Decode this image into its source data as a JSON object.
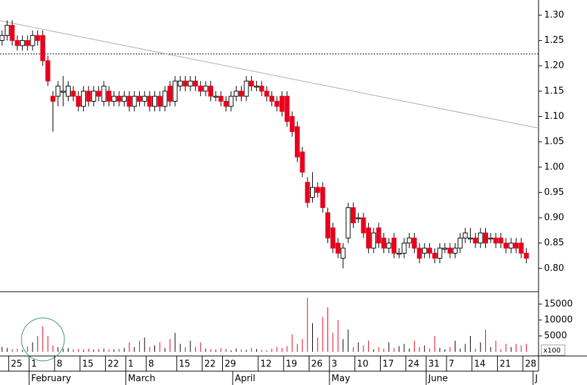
{
  "chart_data": {
    "type": "candlestick",
    "x": [
      0,
      1,
      2,
      3,
      4,
      5,
      6,
      7,
      8,
      9,
      10,
      11,
      12,
      13,
      14,
      15,
      16,
      17,
      18,
      19,
      20,
      21,
      22,
      23,
      24,
      25,
      26,
      27,
      28,
      29,
      30,
      31,
      32,
      33,
      34,
      35,
      36,
      37,
      38,
      39,
      40,
      41,
      42,
      43,
      44,
      45,
      46,
      47,
      48,
      49,
      50,
      51,
      52,
      53,
      54,
      55,
      56,
      57,
      58,
      59,
      60,
      61,
      62,
      63,
      64,
      65,
      66,
      67,
      68,
      69,
      70,
      71,
      72,
      73,
      74,
      75,
      76,
      77,
      78,
      79,
      80,
      81,
      82,
      83,
      84,
      85,
      86,
      87,
      88,
      89,
      90,
      91,
      92,
      93,
      94,
      95,
      96,
      97,
      98,
      99,
      100,
      101,
      102,
      103
    ],
    "open": [
      1.25,
      1.26,
      1.28,
      1.25,
      1.24,
      1.25,
      1.24,
      1.26,
      1.26,
      1.21,
      1.14,
      1.14,
      1.15,
      1.14,
      1.15,
      1.14,
      1.12,
      1.15,
      1.13,
      1.15,
      1.13,
      1.15,
      1.13,
      1.14,
      1.13,
      1.14,
      1.12,
      1.14,
      1.13,
      1.14,
      1.12,
      1.14,
      1.12,
      1.16,
      1.13,
      1.16,
      1.17,
      1.16,
      1.17,
      1.16,
      1.15,
      1.16,
      1.14,
      1.14,
      1.13,
      1.12,
      1.14,
      1.15,
      1.14,
      1.17,
      1.16,
      1.16,
      1.15,
      1.14,
      1.13,
      1.14,
      1.14,
      1.1,
      1.08,
      1.03,
      0.97,
      0.94,
      0.96,
      0.96,
      0.91,
      0.88,
      0.85,
      0.82,
      0.86,
      0.92,
      0.9,
      0.9,
      0.88,
      0.84,
      0.88,
      0.86,
      0.84,
      0.86,
      0.83,
      0.83,
      0.85,
      0.86,
      0.84,
      0.83,
      0.84,
      0.83,
      0.82,
      0.84,
      0.84,
      0.83,
      0.84,
      0.86,
      0.86,
      0.86,
      0.85,
      0.87,
      0.86,
      0.86,
      0.86,
      0.85,
      0.84,
      0.85,
      0.85,
      0.83
    ],
    "high": [
      1.27,
      1.29,
      1.29,
      1.26,
      1.26,
      1.26,
      1.27,
      1.27,
      1.27,
      1.22,
      1.15,
      1.17,
      1.18,
      1.17,
      1.16,
      1.15,
      1.16,
      1.16,
      1.16,
      1.16,
      1.17,
      1.16,
      1.15,
      1.15,
      1.15,
      1.15,
      1.15,
      1.15,
      1.15,
      1.15,
      1.15,
      1.15,
      1.16,
      1.17,
      1.18,
      1.18,
      1.18,
      1.18,
      1.18,
      1.17,
      1.17,
      1.17,
      1.15,
      1.15,
      1.14,
      1.15,
      1.16,
      1.16,
      1.18,
      1.18,
      1.17,
      1.17,
      1.16,
      1.15,
      1.14,
      1.15,
      1.15,
      1.11,
      1.09,
      1.04,
      0.98,
      0.99,
      0.97,
      0.97,
      0.92,
      0.89,
      0.86,
      0.85,
      0.93,
      0.93,
      0.91,
      0.91,
      0.89,
      0.88,
      0.89,
      0.87,
      0.86,
      0.87,
      0.84,
      0.86,
      0.87,
      0.87,
      0.85,
      0.85,
      0.85,
      0.84,
      0.85,
      0.85,
      0.85,
      0.85,
      0.87,
      0.88,
      0.88,
      0.87,
      0.88,
      0.88,
      0.87,
      0.87,
      0.87,
      0.86,
      0.86,
      0.86,
      0.86,
      0.84
    ],
    "low": [
      1.24,
      1.25,
      1.24,
      1.23,
      1.23,
      1.23,
      1.23,
      1.24,
      1.2,
      1.16,
      1.07,
      1.12,
      1.12,
      1.13,
      1.13,
      1.11,
      1.11,
      1.12,
      1.12,
      1.13,
      1.12,
      1.12,
      1.12,
      1.12,
      1.12,
      1.11,
      1.11,
      1.12,
      1.12,
      1.11,
      1.11,
      1.11,
      1.11,
      1.12,
      1.12,
      1.15,
      1.15,
      1.15,
      1.15,
      1.14,
      1.14,
      1.13,
      1.13,
      1.12,
      1.11,
      1.11,
      1.13,
      1.13,
      1.13,
      1.15,
      1.15,
      1.14,
      1.13,
      1.12,
      1.11,
      1.1,
      1.08,
      1.06,
      1.01,
      0.98,
      0.92,
      0.93,
      0.94,
      0.91,
      0.85,
      0.83,
      0.82,
      0.8,
      0.85,
      0.88,
      0.89,
      0.86,
      0.83,
      0.83,
      0.84,
      0.83,
      0.83,
      0.82,
      0.82,
      0.82,
      0.84,
      0.83,
      0.81,
      0.82,
      0.82,
      0.81,
      0.81,
      0.83,
      0.82,
      0.82,
      0.83,
      0.85,
      0.85,
      0.84,
      0.84,
      0.84,
      0.85,
      0.84,
      0.84,
      0.83,
      0.83,
      0.83,
      0.82,
      0.81
    ],
    "close": [
      1.26,
      1.28,
      1.25,
      1.24,
      1.25,
      1.24,
      1.26,
      1.25,
      1.21,
      1.17,
      1.13,
      1.16,
      1.15,
      1.16,
      1.14,
      1.12,
      1.15,
      1.13,
      1.15,
      1.14,
      1.16,
      1.13,
      1.14,
      1.13,
      1.14,
      1.12,
      1.14,
      1.13,
      1.14,
      1.12,
      1.14,
      1.12,
      1.15,
      1.13,
      1.17,
      1.17,
      1.16,
      1.17,
      1.16,
      1.15,
      1.16,
      1.14,
      1.14,
      1.13,
      1.12,
      1.14,
      1.15,
      1.14,
      1.17,
      1.16,
      1.16,
      1.15,
      1.14,
      1.13,
      1.12,
      1.11,
      1.09,
      1.07,
      1.02,
      0.99,
      0.93,
      0.96,
      0.95,
      0.92,
      0.86,
      0.84,
      0.83,
      0.84,
      0.92,
      0.89,
      0.9,
      0.87,
      0.84,
      0.87,
      0.85,
      0.84,
      0.85,
      0.83,
      0.83,
      0.85,
      0.86,
      0.84,
      0.82,
      0.84,
      0.83,
      0.82,
      0.84,
      0.84,
      0.83,
      0.84,
      0.86,
      0.87,
      0.86,
      0.85,
      0.87,
      0.85,
      0.86,
      0.85,
      0.85,
      0.84,
      0.85,
      0.84,
      0.83,
      0.82
    ],
    "volume": [
      1500,
      1200,
      800,
      1000,
      600,
      1800,
      3000,
      5000,
      8000,
      5000,
      2000,
      1500,
      1000,
      1200,
      800,
      900,
      600,
      1000,
      700,
      900,
      1000,
      700,
      800,
      900,
      1200,
      3000,
      1500,
      3500,
      4500,
      1500,
      2000,
      3000,
      1200,
      4000,
      6000,
      2500,
      1500,
      3500,
      1500,
      3000,
      1000,
      800,
      700,
      1200,
      900,
      500,
      1000,
      700,
      600,
      1200,
      900,
      600,
      500,
      1000,
      1500,
      1200,
      1800,
      5500,
      2500,
      4000,
      17000,
      9000,
      4500,
      11000,
      14000,
      6000,
      10000,
      4000,
      7000,
      1500,
      3000,
      2000,
      3500,
      800,
      1500,
      1000,
      3000,
      1200,
      1800,
      2500,
      1000,
      3500,
      1500,
      2000,
      1000,
      5000,
      1200,
      800,
      1500,
      3500,
      1000,
      2500,
      5000,
      1000,
      3000,
      7000,
      1500,
      3500,
      800,
      2500,
      1500,
      2500,
      2000,
      2500
    ],
    "up_color": "#ffffff",
    "down_color": "#e8001c",
    "xlim": [
      -0.4,
      105.4
    ],
    "xticks": [
      {
        "value": 2,
        "label": "25"
      },
      {
        "value": 6,
        "label": "1"
      },
      {
        "value": 11,
        "label": "8"
      },
      {
        "value": 16,
        "label": "15"
      },
      {
        "value": 21,
        "label": "22"
      },
      {
        "value": 25,
        "label": "1"
      },
      {
        "value": 29,
        "label": "8"
      },
      {
        "value": 35,
        "label": "15"
      },
      {
        "value": 40,
        "label": "22"
      },
      {
        "value": 44,
        "label": "29"
      },
      {
        "value": 51,
        "label": "12"
      },
      {
        "value": 56,
        "label": "19"
      },
      {
        "value": 61,
        "label": "26"
      },
      {
        "value": 65,
        "label": "3"
      },
      {
        "value": 70,
        "label": "10"
      },
      {
        "value": 75,
        "label": "17"
      },
      {
        "value": 80,
        "label": "24"
      },
      {
        "value": 84,
        "label": "31"
      },
      {
        "value": 88,
        "label": "7"
      },
      {
        "value": 93,
        "label": "14"
      },
      {
        "value": 98,
        "label": "21"
      },
      {
        "value": 103,
        "label": "28"
      }
    ],
    "month_ticks": [
      {
        "value": 6,
        "label": "February"
      },
      {
        "value": 25,
        "label": "March"
      },
      {
        "value": 46,
        "label": "April"
      },
      {
        "value": 65,
        "label": "May"
      },
      {
        "value": 84,
        "label": "June"
      },
      {
        "value": 105,
        "label": "J"
      }
    ],
    "ylim": [
      0.754,
      1.33
    ],
    "yticks": [
      {
        "value": 0.8,
        "label": "0.80"
      },
      {
        "value": 0.85,
        "label": "0.85"
      },
      {
        "value": 0.9,
        "label": "0.90"
      },
      {
        "value": 0.95,
        "label": "0.95"
      },
      {
        "value": 1.0,
        "label": "1.00"
      },
      {
        "value": 1.05,
        "label": "1.05"
      },
      {
        "value": 1.1,
        "label": "1.10"
      },
      {
        "value": 1.15,
        "label": "1.15"
      },
      {
        "value": 1.2,
        "label": "1.20"
      },
      {
        "value": 1.25,
        "label": "1.25"
      },
      {
        "value": 1.3,
        "label": "1.30"
      }
    ],
    "volume_ylim": [
      -1300,
      18900
    ],
    "volume_yticks": [
      5000,
      10000,
      15000
    ],
    "volume_unit": "x100",
    "trendline": {
      "x": [
        -0.4,
        105.4
      ],
      "y": [
        1.289,
        1.077
      ]
    },
    "reference_line": 1.2235
  }
}
